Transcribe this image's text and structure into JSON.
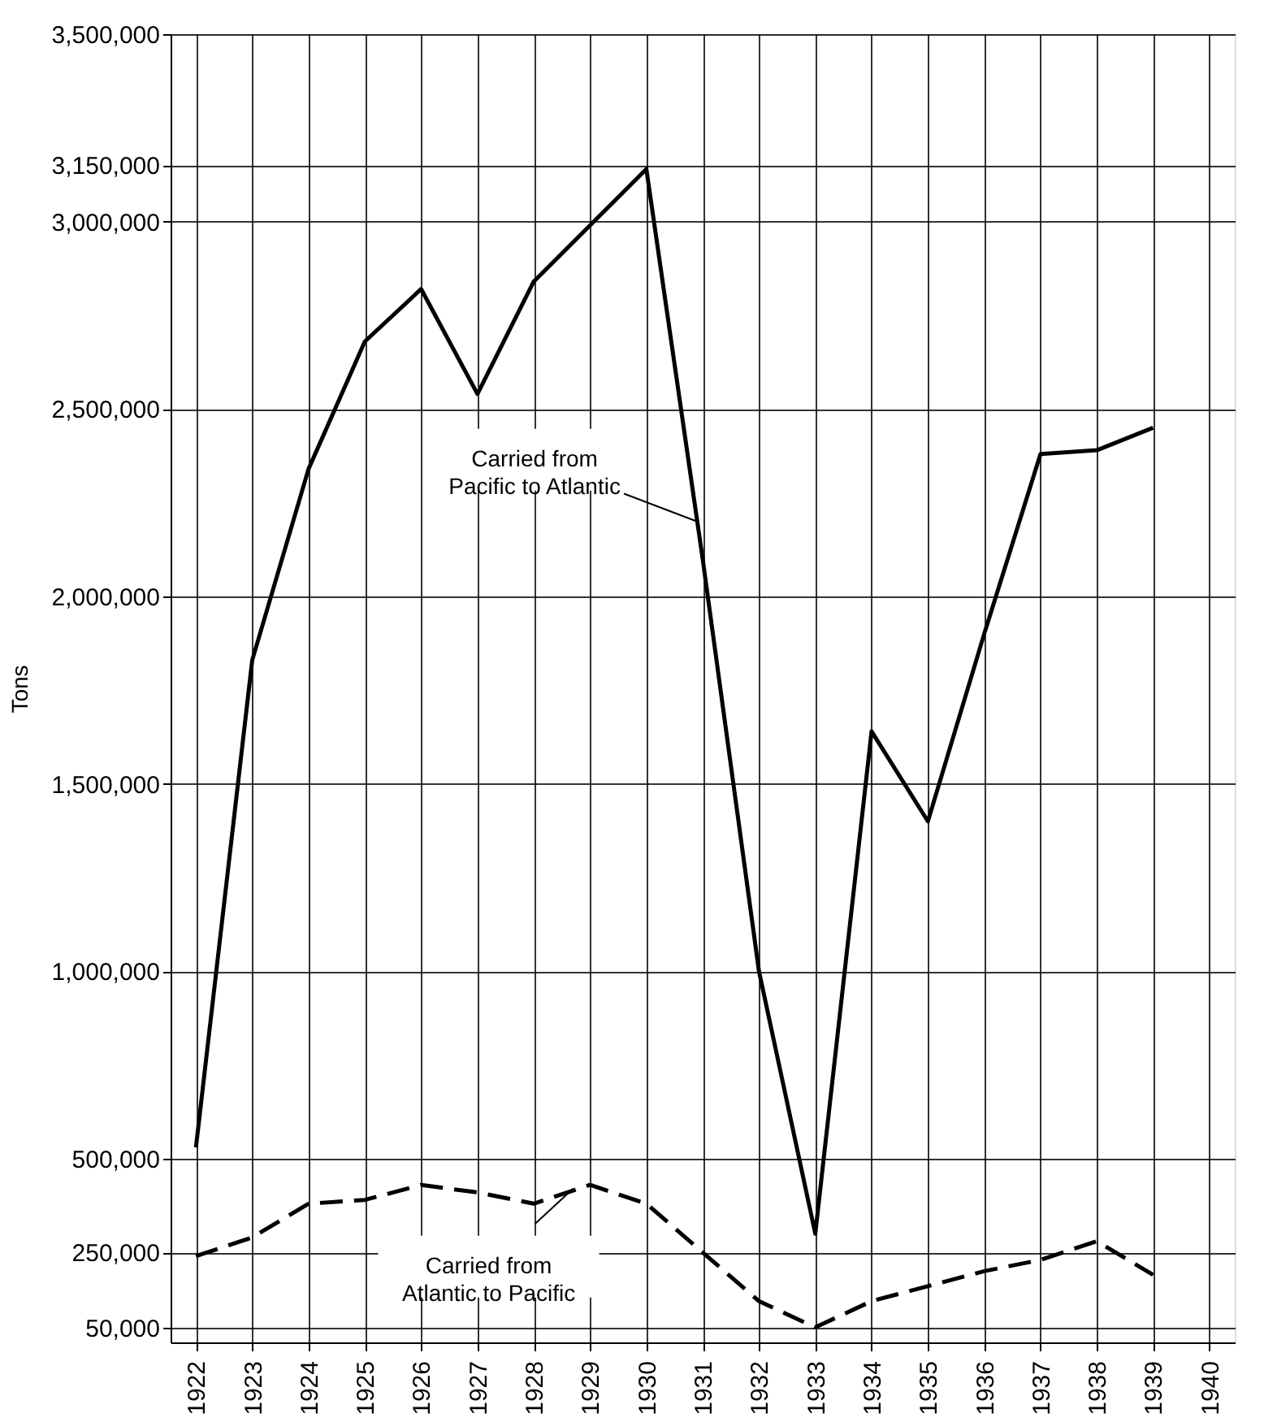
{
  "chart_data": {
    "type": "line",
    "ylabel": "Tons",
    "x": [
      1922,
      1923,
      1924,
      1925,
      1926,
      1927,
      1928,
      1929,
      1930,
      1931,
      1932,
      1933,
      1934,
      1935,
      1936,
      1937,
      1938,
      1939
    ],
    "series": [
      {
        "color": "#000000",
        "line_style": "solid",
        "values": [
          530000,
          1830000,
          2340000,
          2680000,
          2820000,
          2540000,
          2840000,
          2990000,
          3140000,
          2100000,
          1000000,
          300000,
          1640000,
          1400000,
          1900000,
          2380000,
          2390000,
          2450000
        ]
      },
      {
        "color": "#000000",
        "line_style": "dashed",
        "values": [
          240000,
          290000,
          380000,
          390000,
          430000,
          410000,
          380000,
          430000,
          380000,
          250000,
          120000,
          50000,
          120000,
          160000,
          200000,
          230000,
          280000,
          190000
        ]
      }
    ],
    "xlim": [
      1921.55,
      1940.45
    ],
    "xticks": [
      1922,
      1923,
      1924,
      1925,
      1926,
      1927,
      1928,
      1929,
      1930,
      1931,
      1932,
      1933,
      1934,
      1935,
      1936,
      1937,
      1938,
      1939,
      1940
    ],
    "ylim": [
      10000,
      3500000
    ],
    "yticks": [
      {
        "value": 50000,
        "label": "50,000"
      },
      {
        "value": 250000,
        "label": "250,000"
      },
      {
        "value": 500000,
        "label": "500,000"
      },
      {
        "value": 1000000,
        "label": "1,000,000"
      },
      {
        "value": 1500000,
        "label": "1,500,000"
      },
      {
        "value": 2000000,
        "label": "2,000,000"
      },
      {
        "value": 2500000,
        "label": "2,500,000"
      },
      {
        "value": 3000000,
        "label": "3,000,000"
      },
      {
        "value": 3150000,
        "label": "3,150,000"
      },
      {
        "value": 3500000,
        "label": "3,500,000"
      }
    ],
    "grid": true,
    "marker": "none",
    "annotations": [
      {
        "text": "Carried from\nPacific to Atlantic",
        "x": 1930.9,
        "y": 2200000
      },
      {
        "text": "Carried from\nAtlantic to Pacific",
        "x": 1928.7,
        "y": 420000
      }
    ]
  }
}
